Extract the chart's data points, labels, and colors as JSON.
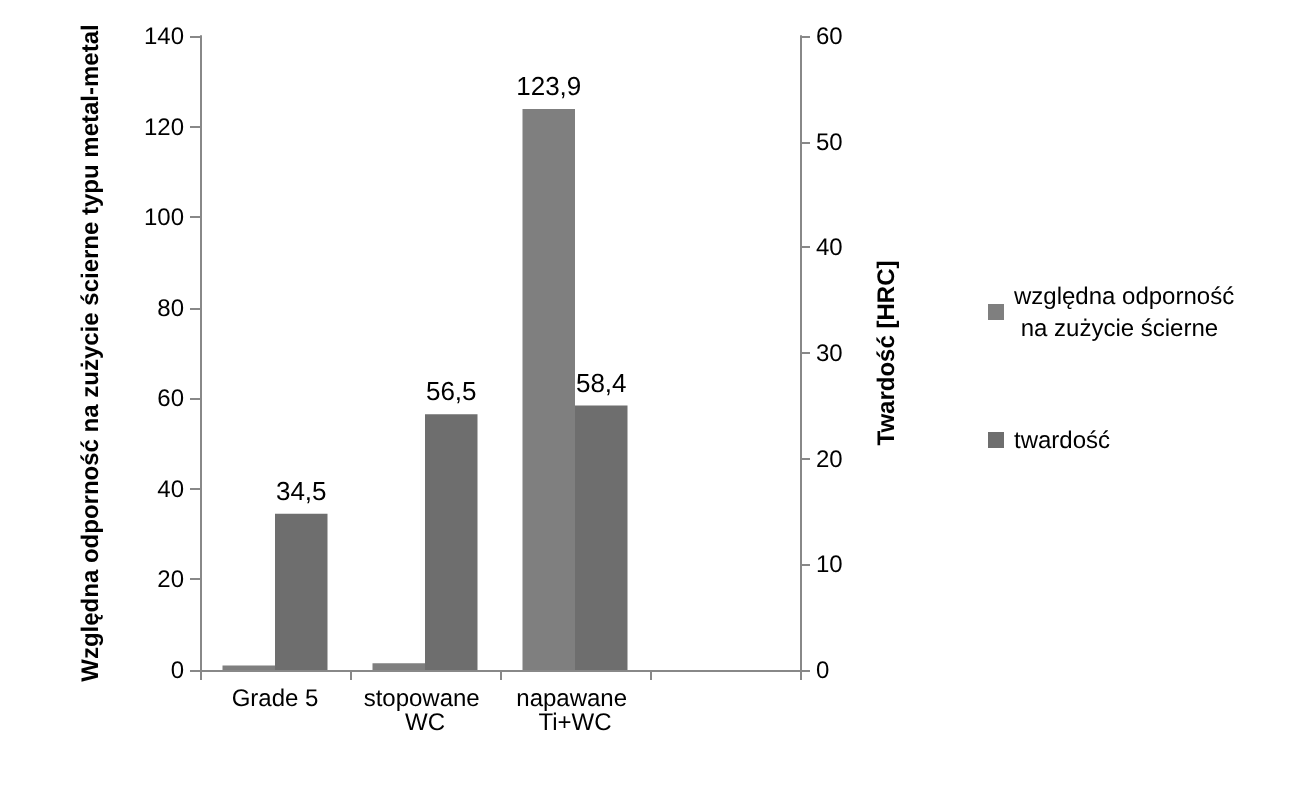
{
  "chart_data": {
    "type": "bar",
    "categories": [
      "Grade 5",
      "stopowane WC",
      "napawane Ti+WC",
      null
    ],
    "ylabel": "Względna odporność na zużycie ścierne typu metal-metal",
    "y2label": "Twardość [HRC]",
    "ylim": [
      0,
      140
    ],
    "yticks": [
      0,
      20,
      40,
      60,
      80,
      100,
      120,
      140
    ],
    "y2lim": [
      0,
      60
    ],
    "y2ticks": [
      0,
      10,
      20,
      30,
      40,
      50,
      60
    ],
    "series": [
      {
        "name": "względna odporność na zużycie ścierne",
        "color": "#7f7f7f",
        "values": [
          1,
          1.5,
          123.9,
          null
        ],
        "value_labels": [
          null,
          null,
          "123,9",
          null
        ]
      },
      {
        "name": "twardość",
        "color": "#6e6e6e",
        "values": [
          34.5,
          56.5,
          58.4,
          null
        ],
        "value_labels": [
          "34,5",
          "56,5",
          "58,4",
          null
        ]
      }
    ],
    "grid": false,
    "legend": "right"
  }
}
